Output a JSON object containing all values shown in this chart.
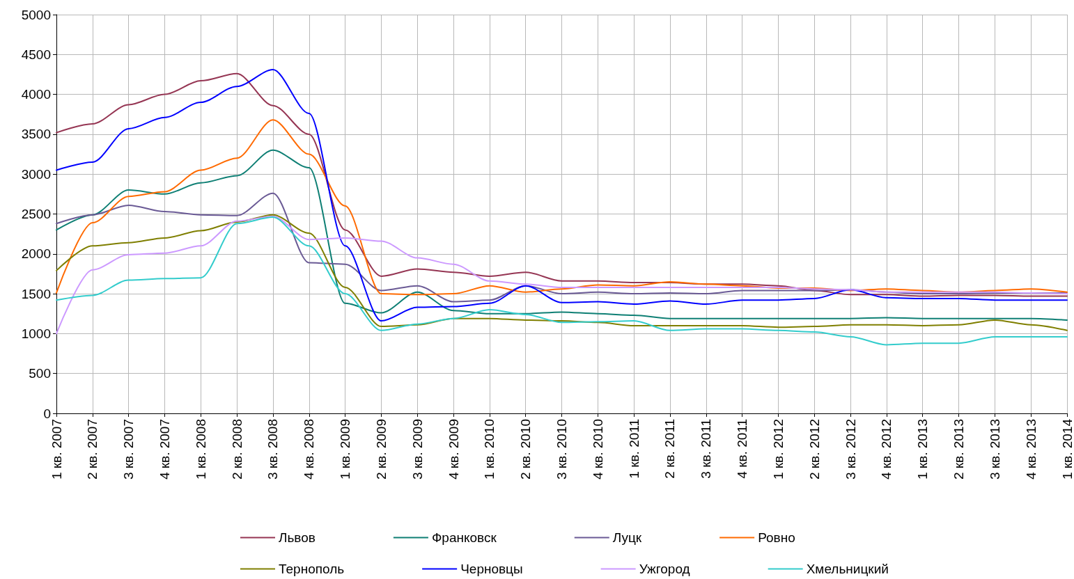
{
  "chart_data": {
    "type": "line",
    "categories": [
      "1 кв. 2007",
      "2 кв. 2007",
      "3 кв. 2007",
      "4 кв. 2007",
      "1 кв. 2008",
      "2 кв. 2008",
      "3 кв. 2008",
      "4 кв. 2008",
      "1 кв. 2009",
      "2 кв. 2009",
      "3 кв. 2009",
      "4 кв. 2009",
      "1 кв. 2010",
      "2 кв. 2010",
      "3 кв. 2010",
      "4 кв. 2010",
      "1 кв. 2011",
      "2 кв. 2011",
      "3 кв. 2011",
      "4 кв. 2011",
      "1 кв. 2012",
      "2 кв. 2012",
      "3 кв. 2012",
      "4 кв. 2012",
      "1 кв. 2013",
      "2 кв. 2013",
      "3 кв. 2013",
      "4 кв. 2013",
      "1 кв. 2014"
    ],
    "series": [
      {
        "name": "Львов",
        "color": "#953553",
        "values": [
          3520,
          3630,
          3870,
          4000,
          4170,
          4260,
          3860,
          3500,
          2300,
          1720,
          1810,
          1770,
          1720,
          1770,
          1660,
          1660,
          1640,
          1640,
          1620,
          1620,
          1600,
          1540,
          1490,
          1490,
          1470,
          1480,
          1480,
          1470,
          1470
        ]
      },
      {
        "name": "Франковск",
        "color": "#0e7f74",
        "values": [
          2300,
          2490,
          2800,
          2750,
          2890,
          2980,
          3300,
          3080,
          1380,
          1260,
          1520,
          1290,
          1250,
          1250,
          1270,
          1250,
          1230,
          1190,
          1190,
          1190,
          1190,
          1190,
          1190,
          1200,
          1190,
          1190,
          1190,
          1190,
          1170
        ]
      },
      {
        "name": "Луцк",
        "color": "#6a5a95",
        "values": [
          2380,
          2490,
          2610,
          2530,
          2490,
          2480,
          2760,
          1890,
          1870,
          1540,
          1600,
          1400,
          1420,
          1600,
          1500,
          1520,
          1500,
          1510,
          1500,
          1540,
          1540,
          1540,
          1550,
          1520,
          1500,
          1500,
          1510,
          1510,
          1510
        ]
      },
      {
        "name": "Ровно",
        "color": "#ff6a00",
        "values": [
          1510,
          2390,
          2720,
          2780,
          3050,
          3200,
          3680,
          3250,
          2600,
          1500,
          1490,
          1500,
          1600,
          1520,
          1560,
          1610,
          1600,
          1650,
          1620,
          1600,
          1570,
          1570,
          1540,
          1560,
          1540,
          1520,
          1540,
          1560,
          1520
        ]
      },
      {
        "name": "Тернополь",
        "color": "#7f7f00",
        "values": [
          1790,
          2100,
          2140,
          2200,
          2290,
          2400,
          2490,
          2260,
          1580,
          1090,
          1110,
          1190,
          1190,
          1170,
          1160,
          1140,
          1100,
          1100,
          1100,
          1100,
          1080,
          1090,
          1110,
          1110,
          1100,
          1110,
          1170,
          1110,
          1040
        ]
      },
      {
        "name": "Черновцы",
        "color": "#0000ff",
        "values": [
          3050,
          3150,
          3570,
          3710,
          3900,
          4100,
          4310,
          3760,
          2100,
          1160,
          1330,
          1340,
          1380,
          1600,
          1390,
          1400,
          1370,
          1410,
          1370,
          1420,
          1420,
          1440,
          1550,
          1450,
          1440,
          1440,
          1420,
          1420,
          1420
        ]
      },
      {
        "name": "Ужгород",
        "color": "#cc99ff",
        "values": [
          1000,
          1800,
          1990,
          2010,
          2100,
          2410,
          2470,
          2180,
          2200,
          2160,
          1950,
          1870,
          1660,
          1620,
          1580,
          1580,
          1580,
          1580,
          1580,
          1580,
          1580,
          1560,
          1550,
          1520,
          1520,
          1520,
          1520,
          1510,
          1500
        ]
      },
      {
        "name": "Хмельницкий",
        "color": "#33cccc",
        "values": [
          1420,
          1480,
          1670,
          1690,
          1700,
          2380,
          2460,
          2100,
          1500,
          1040,
          1120,
          1190,
          1300,
          1240,
          1140,
          1150,
          1160,
          1040,
          1060,
          1060,
          1040,
          1020,
          960,
          860,
          880,
          880,
          960,
          960,
          960
        ]
      }
    ],
    "ylim": [
      0,
      5000
    ],
    "yticks": [
      0,
      500,
      1000,
      1500,
      2000,
      2500,
      3000,
      3500,
      4000,
      4500,
      5000
    ],
    "grid": true,
    "legend": "bottom",
    "marker": "none",
    "line_style": "solid"
  }
}
